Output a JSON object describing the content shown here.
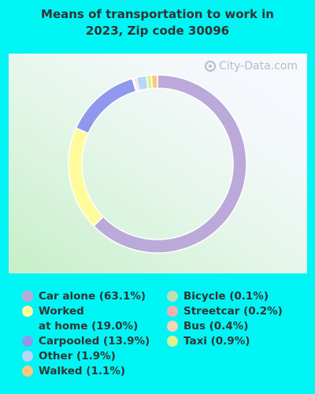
{
  "title_line1": "Means of transportation to work in",
  "title_line2": "2023, Zip code 30096",
  "watermark": "City-Data.com",
  "chart_data": {
    "type": "pie",
    "title": "Means of transportation to work in 2023, Zip code 30096",
    "donut": true,
    "start_angle_deg": 0,
    "legend_placement": "bottom",
    "slices": [
      {
        "label": "Car alone (63.1%)",
        "value": 63.1,
        "color": "#bba9da"
      },
      {
        "label": "Worked\nat home (19.0%)",
        "value": 19.0,
        "color": "#fffb9b"
      },
      {
        "label": "Carpooled (13.9%)",
        "value": 13.9,
        "color": "#9098ee"
      },
      {
        "label": "Bicycle (0.1%)",
        "value": 0.1,
        "color": "#c3ddb0"
      },
      {
        "label": "Streetcar (0.2%)",
        "value": 0.2,
        "color": "#f1b0ad"
      },
      {
        "label": "Bus (0.4%)",
        "value": 0.4,
        "color": "#f8d3b4"
      },
      {
        "label": "Other (1.9%)",
        "value": 1.9,
        "color": "#b8d6fa"
      },
      {
        "label": "Taxi (0.9%)",
        "value": 0.9,
        "color": "#dcf28e"
      },
      {
        "label": "Walked (1.1%)",
        "value": 1.1,
        "color": "#fcc77d"
      }
    ],
    "legend": {
      "column1": [
        "Car alone (63.1%)",
        "Worked\nat home (19.0%)",
        "Carpooled (13.9%)",
        "Other (1.9%)",
        "Walked (1.1%)"
      ],
      "column2": [
        "Bicycle (0.1%)",
        "Streetcar (0.2%)",
        "Bus (0.4%)",
        "Taxi (0.9%)"
      ]
    }
  }
}
